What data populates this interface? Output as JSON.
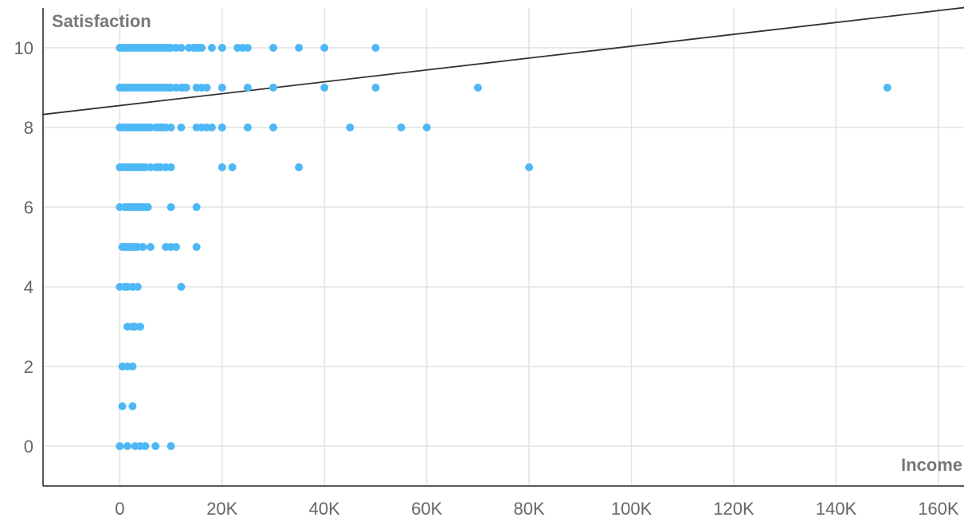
{
  "chart_data": {
    "type": "scatter",
    "xlabel": "Income",
    "ylabel": "Satisfaction",
    "xlim": [
      -15000,
      165000
    ],
    "ylim": [
      -1,
      11
    ],
    "x_ticks": [
      0,
      20000,
      40000,
      60000,
      80000,
      100000,
      120000,
      140000,
      160000
    ],
    "x_tick_labels": [
      "0",
      "20K",
      "40K",
      "60K",
      "80K",
      "100K",
      "120K",
      "140K",
      "160K"
    ],
    "y_ticks": [
      0,
      2,
      4,
      6,
      8,
      10
    ],
    "y_tick_labels": [
      "0",
      "2",
      "4",
      "6",
      "8",
      "10"
    ],
    "grid": true,
    "point_color": "#4db8f5",
    "line_color": "#333333",
    "trendline": {
      "slope": 1.49e-05,
      "intercept": 8.55
    },
    "points": [
      [
        0,
        10
      ],
      [
        500,
        10
      ],
      [
        1000,
        10
      ],
      [
        1500,
        10
      ],
      [
        2000,
        10
      ],
      [
        2500,
        10
      ],
      [
        3000,
        10
      ],
      [
        3500,
        10
      ],
      [
        4000,
        10
      ],
      [
        4500,
        10
      ],
      [
        5000,
        10
      ],
      [
        5500,
        10
      ],
      [
        6000,
        10
      ],
      [
        6500,
        10
      ],
      [
        7000,
        10
      ],
      [
        7500,
        10
      ],
      [
        8000,
        10
      ],
      [
        8500,
        10
      ],
      [
        9000,
        10
      ],
      [
        9500,
        10
      ],
      [
        10000,
        10
      ],
      [
        11000,
        10
      ],
      [
        12000,
        10
      ],
      [
        13500,
        10
      ],
      [
        14500,
        10
      ],
      [
        15000,
        10
      ],
      [
        15500,
        10
      ],
      [
        16000,
        10
      ],
      [
        18000,
        10
      ],
      [
        20000,
        10
      ],
      [
        23000,
        10
      ],
      [
        24000,
        10
      ],
      [
        25000,
        10
      ],
      [
        30000,
        10
      ],
      [
        35000,
        10
      ],
      [
        40000,
        10
      ],
      [
        50000,
        10
      ],
      [
        0,
        9
      ],
      [
        500,
        9
      ],
      [
        1000,
        9
      ],
      [
        1500,
        9
      ],
      [
        2000,
        9
      ],
      [
        2500,
        9
      ],
      [
        3000,
        9
      ],
      [
        3500,
        9
      ],
      [
        4000,
        9
      ],
      [
        4500,
        9
      ],
      [
        5000,
        9
      ],
      [
        5500,
        9
      ],
      [
        6000,
        9
      ],
      [
        6500,
        9
      ],
      [
        7000,
        9
      ],
      [
        7500,
        9
      ],
      [
        8000,
        9
      ],
      [
        8500,
        9
      ],
      [
        9000,
        9
      ],
      [
        9500,
        9
      ],
      [
        10000,
        9
      ],
      [
        11000,
        9
      ],
      [
        12000,
        9
      ],
      [
        12500,
        9
      ],
      [
        13000,
        9
      ],
      [
        15000,
        9
      ],
      [
        16000,
        9
      ],
      [
        17000,
        9
      ],
      [
        20000,
        9
      ],
      [
        25000,
        9
      ],
      [
        30000,
        9
      ],
      [
        40000,
        9
      ],
      [
        50000,
        9
      ],
      [
        70000,
        9
      ],
      [
        150000,
        9
      ],
      [
        0,
        8
      ],
      [
        500,
        8
      ],
      [
        1000,
        8
      ],
      [
        1500,
        8
      ],
      [
        2000,
        8
      ],
      [
        2500,
        8
      ],
      [
        3000,
        8
      ],
      [
        3500,
        8
      ],
      [
        4000,
        8
      ],
      [
        4500,
        8
      ],
      [
        5000,
        8
      ],
      [
        5500,
        8
      ],
      [
        6000,
        8
      ],
      [
        7000,
        8
      ],
      [
        7500,
        8
      ],
      [
        8000,
        8
      ],
      [
        8500,
        8
      ],
      [
        9000,
        8
      ],
      [
        10000,
        8
      ],
      [
        12000,
        8
      ],
      [
        15000,
        8
      ],
      [
        16000,
        8
      ],
      [
        17000,
        8
      ],
      [
        18000,
        8
      ],
      [
        20000,
        8
      ],
      [
        25000,
        8
      ],
      [
        30000,
        8
      ],
      [
        45000,
        8
      ],
      [
        55000,
        8
      ],
      [
        60000,
        8
      ],
      [
        0,
        7
      ],
      [
        500,
        7
      ],
      [
        1000,
        7
      ],
      [
        1500,
        7
      ],
      [
        2000,
        7
      ],
      [
        2500,
        7
      ],
      [
        3000,
        7
      ],
      [
        3500,
        7
      ],
      [
        4000,
        7
      ],
      [
        4500,
        7
      ],
      [
        5000,
        7
      ],
      [
        6000,
        7
      ],
      [
        7000,
        7
      ],
      [
        7500,
        7
      ],
      [
        8000,
        7
      ],
      [
        9000,
        7
      ],
      [
        10000,
        7
      ],
      [
        20000,
        7
      ],
      [
        22000,
        7
      ],
      [
        35000,
        7
      ],
      [
        80000,
        7
      ],
      [
        0,
        6
      ],
      [
        1000,
        6
      ],
      [
        1500,
        6
      ],
      [
        2000,
        6
      ],
      [
        2500,
        6
      ],
      [
        3000,
        6
      ],
      [
        3500,
        6
      ],
      [
        4000,
        6
      ],
      [
        4500,
        6
      ],
      [
        5000,
        6
      ],
      [
        5500,
        6
      ],
      [
        10000,
        6
      ],
      [
        15000,
        6
      ],
      [
        500,
        5
      ],
      [
        1000,
        5
      ],
      [
        1500,
        5
      ],
      [
        2000,
        5
      ],
      [
        2500,
        5
      ],
      [
        3000,
        5
      ],
      [
        3500,
        5
      ],
      [
        4500,
        5
      ],
      [
        6000,
        5
      ],
      [
        9000,
        5
      ],
      [
        10000,
        5
      ],
      [
        11000,
        5
      ],
      [
        15000,
        5
      ],
      [
        0,
        4
      ],
      [
        1000,
        4
      ],
      [
        1500,
        4
      ],
      [
        2500,
        4
      ],
      [
        3500,
        4
      ],
      [
        12000,
        4
      ],
      [
        1500,
        3
      ],
      [
        2500,
        3
      ],
      [
        3000,
        3
      ],
      [
        4000,
        3
      ],
      [
        500,
        2
      ],
      [
        1500,
        2
      ],
      [
        2500,
        2
      ],
      [
        500,
        1
      ],
      [
        2500,
        1
      ],
      [
        0,
        0
      ],
      [
        1500,
        0
      ],
      [
        3000,
        0
      ],
      [
        4000,
        0
      ],
      [
        5000,
        0
      ],
      [
        7000,
        0
      ],
      [
        10000,
        0
      ]
    ]
  }
}
